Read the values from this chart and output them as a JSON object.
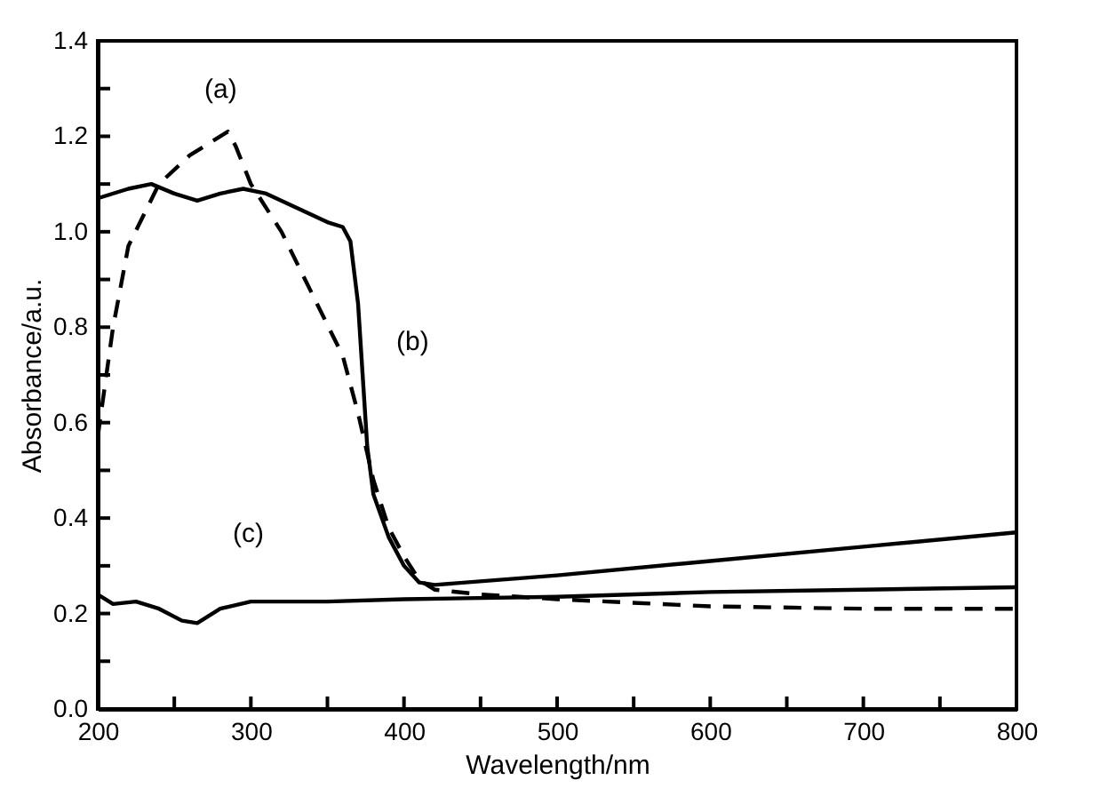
{
  "chart_data": {
    "type": "line",
    "xlabel": "Wavelength/nm",
    "ylabel": "Absorbance/a.u.",
    "xlim": [
      200,
      800
    ],
    "ylim": [
      0,
      1.4
    ],
    "xticks": [
      200,
      {
        "value": 250,
        "label": null
      },
      300,
      {
        "value": 350,
        "label": null
      },
      400,
      {
        "value": 450,
        "label": null
      },
      500,
      {
        "value": 550,
        "label": null
      },
      600,
      {
        "value": 650,
        "label": null
      },
      700,
      {
        "value": 750,
        "label": null
      },
      800
    ],
    "yticks": [
      {
        "value": 0,
        "label": "0.0"
      },
      {
        "value": 0.1,
        "label": null
      },
      {
        "value": 0.2,
        "label": "0.2"
      },
      {
        "value": 0.3,
        "label": null
      },
      {
        "value": 0.4,
        "label": "0.4"
      },
      {
        "value": 0.5,
        "label": null
      },
      {
        "value": 0.6,
        "label": "0.6"
      },
      {
        "value": 0.7,
        "label": null
      },
      {
        "value": 0.8,
        "label": "0.8"
      },
      {
        "value": 0.9,
        "label": null
      },
      {
        "value": 1.0,
        "label": "1.0"
      },
      {
        "value": 1.1,
        "label": null
      },
      {
        "value": 1.2,
        "label": "1.2"
      },
      {
        "value": 1.3,
        "label": null
      },
      {
        "value": 1.4,
        "label": "1.4"
      }
    ],
    "series": [
      {
        "color": "#000000",
        "line_style": "dashed",
        "x": [
          200,
          210,
          220,
          240,
          260,
          275,
          285,
          290,
          300,
          320,
          340,
          360,
          370,
          380,
          390,
          400,
          410,
          420,
          450,
          500,
          600,
          700,
          800
        ],
        "values": [
          0.57,
          0.8,
          0.97,
          1.1,
          1.16,
          1.19,
          1.21,
          1.18,
          1.1,
          1.0,
          0.87,
          0.74,
          0.62,
          0.48,
          0.38,
          0.32,
          0.27,
          0.25,
          0.24,
          0.23,
          0.215,
          0.21,
          0.21
        ]
      },
      {
        "color": "#000000",
        "line_style": "solid",
        "x": [
          200,
          220,
          235,
          250,
          265,
          280,
          295,
          310,
          330,
          350,
          360,
          365,
          370,
          373,
          376,
          380,
          390,
          400,
          410,
          420,
          500,
          600,
          700,
          800
        ],
        "values": [
          1.07,
          1.09,
          1.1,
          1.08,
          1.065,
          1.08,
          1.09,
          1.08,
          1.05,
          1.02,
          1.01,
          0.98,
          0.85,
          0.7,
          0.55,
          0.45,
          0.36,
          0.3,
          0.265,
          0.26,
          0.28,
          0.31,
          0.34,
          0.37
        ]
      },
      {
        "color": "#000000",
        "line_style": "solid",
        "x": [
          200,
          210,
          225,
          240,
          255,
          265,
          280,
          300,
          350,
          400,
          500,
          600,
          700,
          800
        ],
        "values": [
          0.24,
          0.22,
          0.225,
          0.21,
          0.185,
          0.18,
          0.21,
          0.225,
          0.225,
          0.23,
          0.235,
          0.245,
          0.25,
          0.255
        ]
      }
    ],
    "annotations": [
      "(a)",
      "(b)",
      "(c)"
    ]
  }
}
